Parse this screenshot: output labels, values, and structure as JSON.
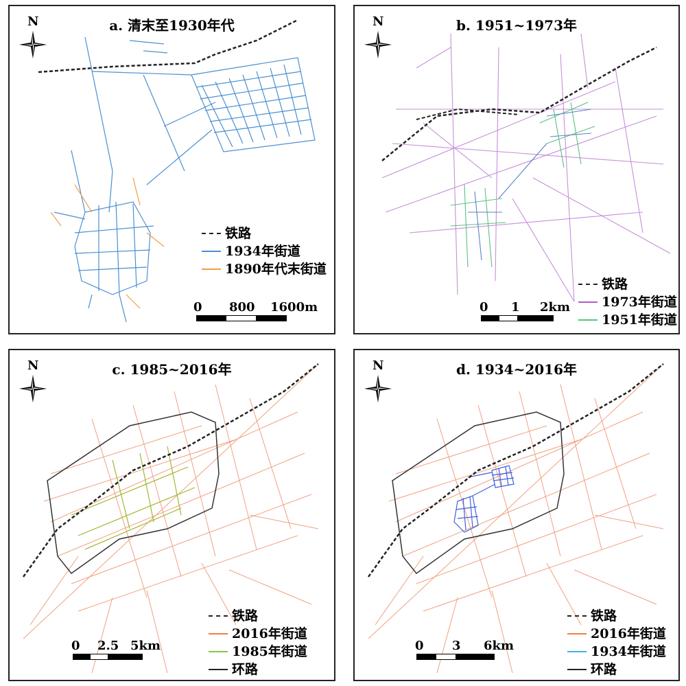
{
  "panels": {
    "a": {
      "title": "a. 清末至1930年代",
      "north": "N",
      "legend": [
        {
          "label": "铁路",
          "style": "railway",
          "color": "#222222"
        },
        {
          "label": "1934年街道",
          "style": "line",
          "color": "#4a8fd0"
        },
        {
          "label": "1890年代末街道",
          "style": "line",
          "color": "#f0a040"
        }
      ],
      "scale": {
        "ticks": [
          "0",
          "800",
          "1600m"
        ]
      }
    },
    "b": {
      "title": "b. 1951~1973年",
      "north": "N",
      "legend": [
        {
          "label": "铁路",
          "style": "railway",
          "color": "#222222"
        },
        {
          "label": "1973年街道",
          "style": "line",
          "color": "#b05cc8"
        },
        {
          "label": "1951年街道",
          "style": "line",
          "color": "#5cc080"
        }
      ],
      "scale": {
        "ticks": [
          "0",
          "1",
          "2km"
        ]
      }
    },
    "c": {
      "title": "c. 1985~2016年",
      "north": "N",
      "legend": [
        {
          "label": "铁路",
          "style": "railway",
          "color": "#222222"
        },
        {
          "label": "2016年街道",
          "style": "line",
          "color": "#f08040"
        },
        {
          "label": "1985年街道",
          "style": "line",
          "color": "#80c850"
        },
        {
          "label": "环路",
          "style": "line",
          "color": "#222222"
        }
      ],
      "scale": {
        "ticks": [
          "0",
          "2.5",
          "5km"
        ]
      }
    },
    "d": {
      "title": "d. 1934~2016年",
      "north": "N",
      "legend": [
        {
          "label": "铁路",
          "style": "railway",
          "color": "#222222"
        },
        {
          "label": "2016年街道",
          "style": "line",
          "color": "#f08040"
        },
        {
          "label": "1934年街道",
          "style": "line",
          "color": "#40b0f0"
        },
        {
          "label": "环路",
          "style": "line",
          "color": "#222222"
        }
      ],
      "scale": {
        "ticks": [
          "0",
          "3",
          "6km"
        ]
      }
    }
  }
}
